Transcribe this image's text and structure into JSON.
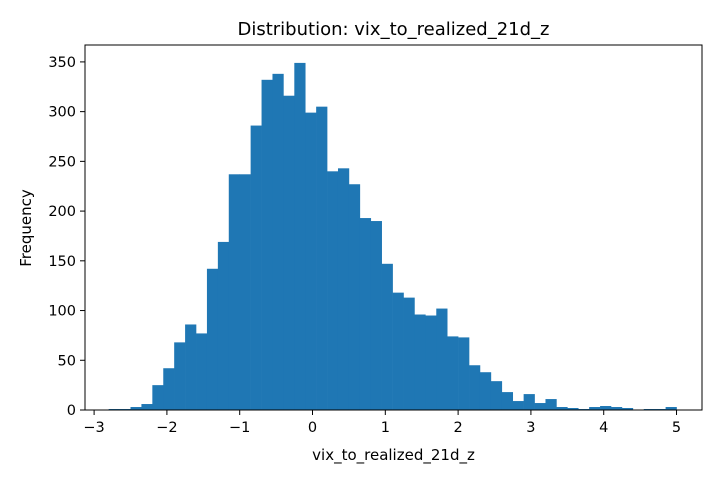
{
  "chart_data": {
    "type": "bar",
    "title": "Distribution: vix_to_realized_21d_z",
    "xlabel": "vix_to_realized_21d_z",
    "ylabel": "Frequency",
    "xlim": [
      -3.125,
      5.35
    ],
    "ylim": [
      0,
      367
    ],
    "grid": false,
    "bar_color": "#1f77b4",
    "x_ticks": [
      {
        "value": -3,
        "label": "−3"
      },
      {
        "value": -2,
        "label": "−2"
      },
      {
        "value": -1,
        "label": "−1"
      },
      {
        "value": 0,
        "label": "0"
      },
      {
        "value": 1,
        "label": "1"
      },
      {
        "value": 2,
        "label": "2"
      },
      {
        "value": 3,
        "label": "3"
      },
      {
        "value": 4,
        "label": "4"
      },
      {
        "value": 5,
        "label": "5"
      }
    ],
    "y_ticks": [
      {
        "value": 0,
        "label": "0"
      },
      {
        "value": 50,
        "label": "50"
      },
      {
        "value": 100,
        "label": "100"
      },
      {
        "value": 150,
        "label": "150"
      },
      {
        "value": 200,
        "label": "200"
      },
      {
        "value": 250,
        "label": "250"
      },
      {
        "value": 300,
        "label": "300"
      },
      {
        "value": 350,
        "label": "350"
      }
    ],
    "bin_start": -2.8,
    "bin_width": 0.15,
    "values": [
      1,
      1,
      3,
      6,
      25,
      42,
      68,
      86,
      77,
      142,
      169,
      237,
      237,
      286,
      332,
      338,
      316,
      349,
      299,
      305,
      240,
      243,
      227,
      193,
      190,
      147,
      118,
      113,
      96,
      95,
      102,
      74,
      73,
      45,
      38,
      29,
      18,
      9,
      16,
      7,
      11,
      3,
      2,
      1,
      3,
      4,
      3,
      2,
      0,
      1,
      1,
      3
    ]
  }
}
